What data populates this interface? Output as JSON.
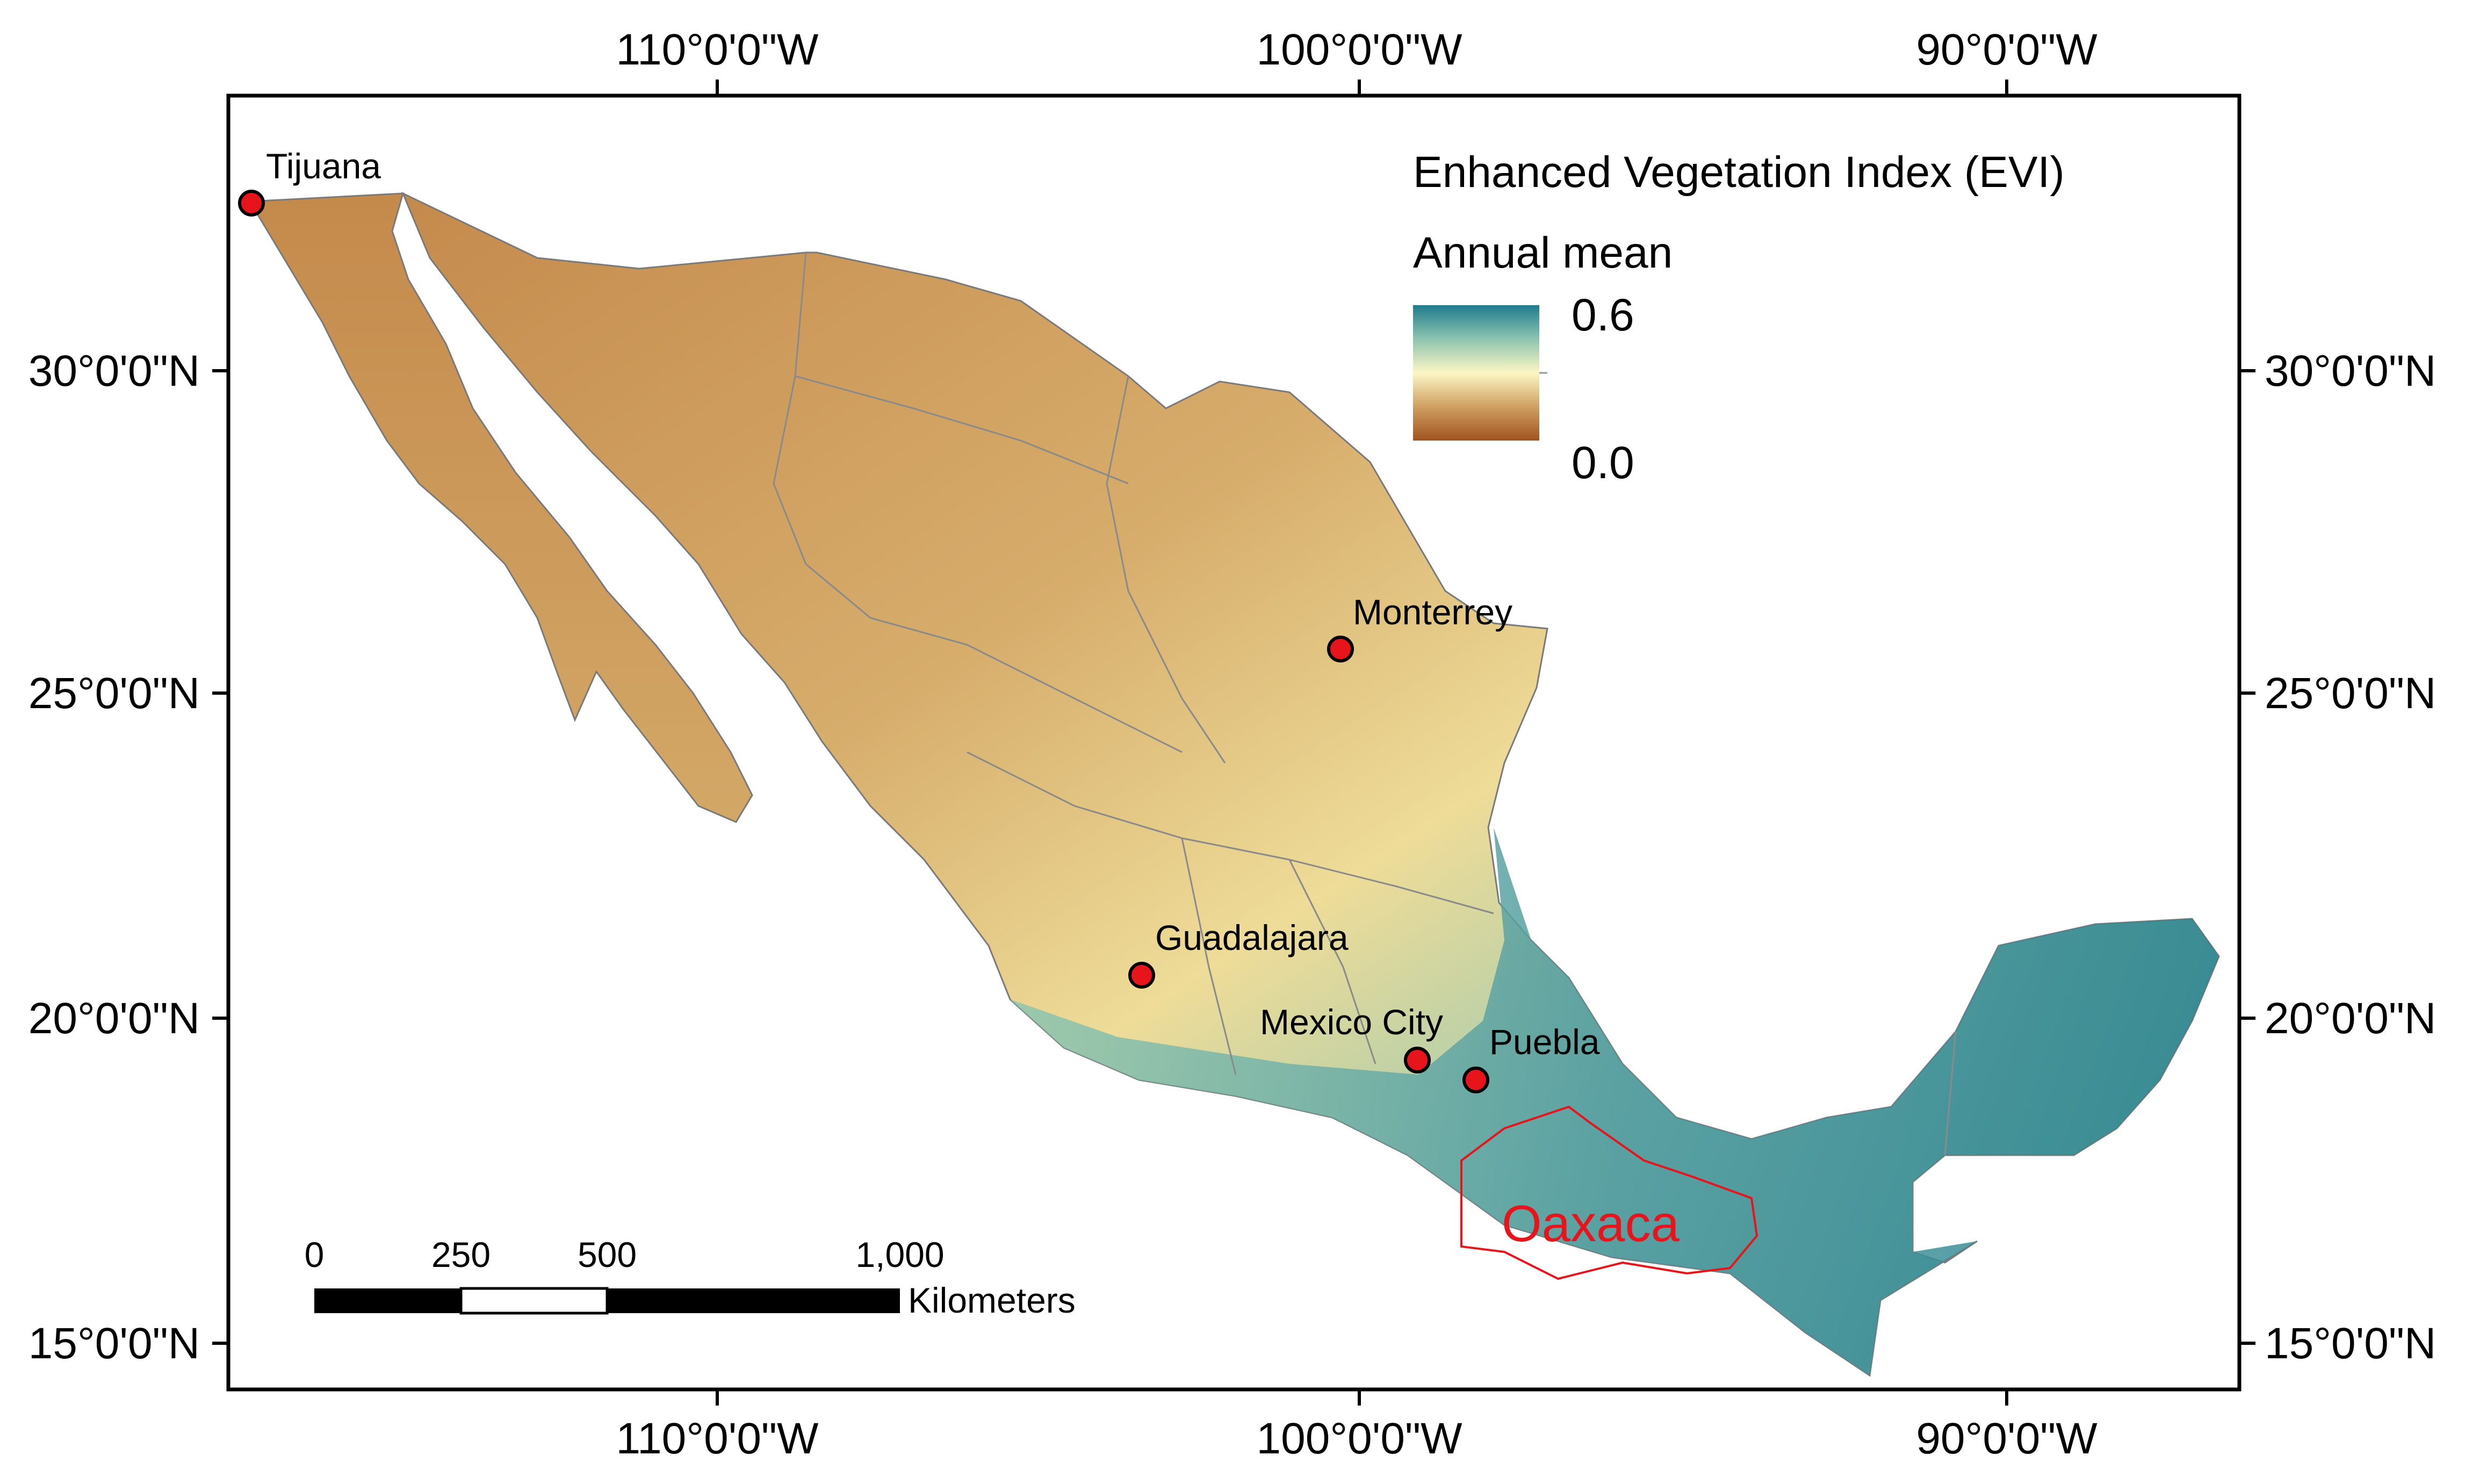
{
  "map": {
    "legend": {
      "title": "Enhanced Vegetation Index (EVI)",
      "subtitle": "Annual mean",
      "max_label": "0.6",
      "min_label": "0.0",
      "ramp_colors": [
        "#a0541f",
        "#cf9f61",
        "#fcf7c5",
        "#8dc4b0",
        "#1f7b8c"
      ]
    },
    "axes": {
      "top": [
        "110°0'0\"W",
        "100°0'0\"W",
        "90°0'0\"W"
      ],
      "bottom": [
        "110°0'0\"W",
        "100°0'0\"W",
        "90°0'0\"W"
      ],
      "left": [
        "30°0'0\"N",
        "25°0'0\"N",
        "20°0'0\"N",
        "15°0'0\"N"
      ],
      "right": [
        "30°0'0\"N",
        "25°0'0\"N",
        "20°0'0\"N",
        "15°0'0\"N"
      ]
    },
    "cities": [
      {
        "name": "Tijuana"
      },
      {
        "name": "Monterrey"
      },
      {
        "name": "Guadalajara"
      },
      {
        "name": "Mexico City"
      },
      {
        "name": "Puebla"
      }
    ],
    "highlight_region": {
      "name": "Oaxaca",
      "color": "#e8141c"
    },
    "city_marker_color": "#e8141c",
    "scale_bar": {
      "ticks": [
        "0",
        "250",
        "500",
        "1,000"
      ],
      "unit": "Kilometers"
    }
  }
}
